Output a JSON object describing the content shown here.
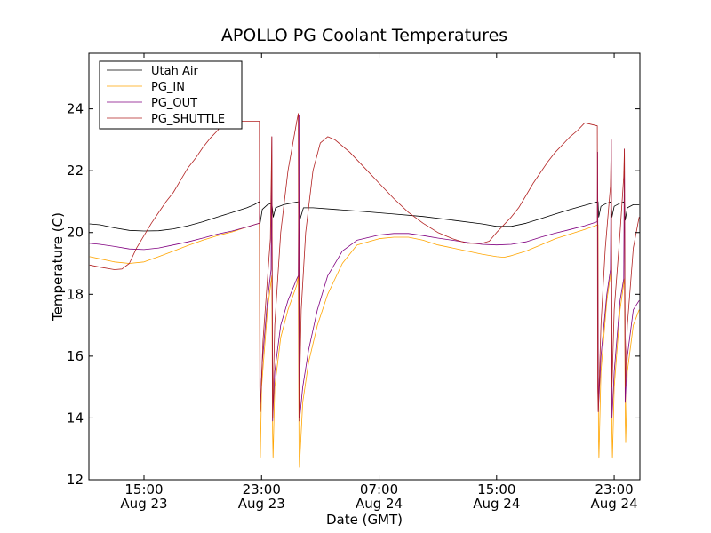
{
  "chart_data": {
    "type": "line",
    "title": "APOLLO PG Coolant Temperatures",
    "xlabel": "Date (GMT)",
    "ylabel": "Temperature (C)",
    "x_units": "hours since Aug 23 00:00 GMT",
    "xlim": [
      11.25,
      48.75
    ],
    "ylim": [
      12,
      25.8
    ],
    "yticks": [
      12,
      14,
      16,
      18,
      20,
      22,
      24
    ],
    "xticks": [
      {
        "x": 15,
        "time": "15:00",
        "date": "Aug 23"
      },
      {
        "x": 23,
        "time": "23:00",
        "date": "Aug 23"
      },
      {
        "x": 31,
        "time": "07:00",
        "date": "Aug 24"
      },
      {
        "x": 39,
        "time": "15:00",
        "date": "Aug 24"
      },
      {
        "x": 47,
        "time": "23:00",
        "date": "Aug 24"
      }
    ],
    "grid": false,
    "legend_position": "top-left",
    "series": [
      {
        "name": "Utah Air",
        "color": "#000000",
        "points": [
          [
            11.3,
            20.28
          ],
          [
            12.0,
            20.25
          ],
          [
            13.0,
            20.15
          ],
          [
            14.0,
            20.07
          ],
          [
            15.0,
            20.05
          ],
          [
            16.0,
            20.06
          ],
          [
            17.0,
            20.12
          ],
          [
            18.0,
            20.22
          ],
          [
            19.0,
            20.35
          ],
          [
            20.0,
            20.5
          ],
          [
            21.0,
            20.65
          ],
          [
            22.0,
            20.8
          ],
          [
            22.5,
            20.9
          ],
          [
            22.85,
            21.0
          ],
          [
            22.9,
            20.3
          ],
          [
            23.05,
            20.75
          ],
          [
            23.4,
            20.9
          ],
          [
            23.7,
            20.95
          ],
          [
            23.8,
            20.5
          ],
          [
            23.95,
            20.8
          ],
          [
            24.5,
            20.9
          ],
          [
            25.0,
            20.95
          ],
          [
            25.55,
            21.0
          ],
          [
            25.6,
            20.4
          ],
          [
            25.85,
            20.8
          ],
          [
            26.5,
            20.8
          ],
          [
            28.0,
            20.75
          ],
          [
            30.0,
            20.68
          ],
          [
            32.0,
            20.6
          ],
          [
            34.0,
            20.52
          ],
          [
            36.0,
            20.4
          ],
          [
            38.0,
            20.28
          ],
          [
            39.0,
            20.2
          ],
          [
            40.0,
            20.2
          ],
          [
            41.0,
            20.3
          ],
          [
            42.0,
            20.45
          ],
          [
            43.0,
            20.6
          ],
          [
            44.0,
            20.75
          ],
          [
            45.0,
            20.88
          ],
          [
            45.9,
            21.0
          ],
          [
            45.95,
            20.5
          ],
          [
            46.1,
            20.85
          ],
          [
            46.5,
            20.95
          ],
          [
            46.8,
            21.0
          ],
          [
            46.85,
            20.5
          ],
          [
            47.0,
            20.85
          ],
          [
            47.4,
            20.95
          ],
          [
            47.7,
            21.0
          ],
          [
            47.75,
            20.4
          ],
          [
            47.9,
            20.8
          ],
          [
            48.3,
            20.9
          ],
          [
            48.7,
            20.9
          ]
        ]
      },
      {
        "name": "PG_IN",
        "color": "#ffa500",
        "points": [
          [
            11.3,
            19.22
          ],
          [
            12.0,
            19.15
          ],
          [
            13.0,
            19.05
          ],
          [
            14.0,
            19.0
          ],
          [
            15.0,
            19.05
          ],
          [
            16.0,
            19.22
          ],
          [
            17.0,
            19.4
          ],
          [
            18.0,
            19.58
          ],
          [
            19.0,
            19.75
          ],
          [
            20.0,
            19.9
          ],
          [
            21.0,
            20.02
          ],
          [
            22.0,
            20.18
          ],
          [
            22.85,
            20.3
          ],
          [
            22.9,
            14.0
          ],
          [
            22.92,
            12.7
          ],
          [
            23.0,
            15.0
          ],
          [
            23.4,
            17.5
          ],
          [
            23.7,
            18.6
          ],
          [
            23.75,
            13.5
          ],
          [
            23.78,
            12.7
          ],
          [
            23.9,
            15.0
          ],
          [
            24.3,
            16.6
          ],
          [
            24.8,
            17.5
          ],
          [
            25.4,
            18.3
          ],
          [
            25.5,
            18.6
          ],
          [
            25.55,
            13.0
          ],
          [
            25.58,
            12.4
          ],
          [
            25.8,
            14.5
          ],
          [
            26.2,
            15.8
          ],
          [
            26.8,
            17.0
          ],
          [
            27.5,
            18.0
          ],
          [
            28.5,
            19.0
          ],
          [
            29.5,
            19.6
          ],
          [
            31.0,
            19.8
          ],
          [
            32.0,
            19.85
          ],
          [
            33.0,
            19.85
          ],
          [
            34.0,
            19.75
          ],
          [
            35.0,
            19.6
          ],
          [
            36.0,
            19.5
          ],
          [
            37.0,
            19.4
          ],
          [
            38.0,
            19.3
          ],
          [
            39.0,
            19.22
          ],
          [
            39.5,
            19.2
          ],
          [
            40.0,
            19.25
          ],
          [
            41.0,
            19.4
          ],
          [
            42.0,
            19.6
          ],
          [
            43.0,
            19.8
          ],
          [
            44.0,
            19.95
          ],
          [
            45.0,
            20.1
          ],
          [
            45.9,
            20.25
          ],
          [
            45.93,
            13.5
          ],
          [
            45.96,
            12.7
          ],
          [
            46.1,
            15.5
          ],
          [
            46.5,
            17.8
          ],
          [
            46.8,
            18.8
          ],
          [
            46.85,
            13.5
          ],
          [
            46.88,
            12.7
          ],
          [
            47.0,
            15.0
          ],
          [
            47.4,
            17.5
          ],
          [
            47.7,
            18.5
          ],
          [
            47.75,
            14.0
          ],
          [
            47.78,
            13.2
          ],
          [
            47.9,
            15.5
          ],
          [
            48.3,
            17.0
          ],
          [
            48.7,
            17.5
          ]
        ]
      },
      {
        "name": "PG_OUT",
        "color": "#800080",
        "points": [
          [
            11.3,
            19.65
          ],
          [
            12.0,
            19.62
          ],
          [
            13.0,
            19.55
          ],
          [
            14.0,
            19.47
          ],
          [
            15.0,
            19.45
          ],
          [
            16.0,
            19.5
          ],
          [
            17.0,
            19.6
          ],
          [
            18.0,
            19.7
          ],
          [
            19.0,
            19.82
          ],
          [
            20.0,
            19.95
          ],
          [
            21.0,
            20.05
          ],
          [
            22.0,
            20.18
          ],
          [
            22.85,
            20.3
          ],
          [
            22.88,
            22.6
          ],
          [
            22.91,
            14.2
          ],
          [
            23.05,
            15.8
          ],
          [
            23.4,
            17.8
          ],
          [
            23.65,
            18.8
          ],
          [
            23.7,
            23.1
          ],
          [
            23.75,
            13.9
          ],
          [
            23.9,
            15.5
          ],
          [
            24.3,
            17.0
          ],
          [
            24.8,
            17.8
          ],
          [
            25.4,
            18.5
          ],
          [
            25.5,
            18.6
          ],
          [
            25.55,
            23.8
          ],
          [
            25.58,
            13.9
          ],
          [
            25.8,
            15.0
          ],
          [
            26.2,
            16.2
          ],
          [
            26.8,
            17.5
          ],
          [
            27.5,
            18.6
          ],
          [
            28.5,
            19.4
          ],
          [
            29.5,
            19.75
          ],
          [
            31.0,
            19.92
          ],
          [
            32.0,
            19.97
          ],
          [
            33.0,
            19.97
          ],
          [
            34.0,
            19.9
          ],
          [
            35.0,
            19.82
          ],
          [
            36.0,
            19.75
          ],
          [
            37.0,
            19.68
          ],
          [
            38.0,
            19.62
          ],
          [
            39.0,
            19.6
          ],
          [
            40.0,
            19.62
          ],
          [
            41.0,
            19.7
          ],
          [
            42.0,
            19.85
          ],
          [
            43.0,
            19.98
          ],
          [
            44.0,
            20.1
          ],
          [
            45.0,
            20.22
          ],
          [
            45.85,
            20.35
          ],
          [
            45.88,
            22.6
          ],
          [
            45.92,
            14.2
          ],
          [
            46.1,
            16.0
          ],
          [
            46.5,
            18.0
          ],
          [
            46.75,
            18.8
          ],
          [
            46.8,
            23.0
          ],
          [
            46.85,
            14.0
          ],
          [
            47.0,
            15.5
          ],
          [
            47.4,
            17.8
          ],
          [
            47.65,
            18.5
          ],
          [
            47.7,
            22.7
          ],
          [
            47.75,
            14.5
          ],
          [
            47.9,
            16.0
          ],
          [
            48.3,
            17.5
          ],
          [
            48.7,
            17.8
          ]
        ]
      },
      {
        "name": "PG_SHUTTLE",
        "color": "#b22222",
        "points": [
          [
            11.3,
            18.95
          ],
          [
            12.0,
            18.88
          ],
          [
            13.0,
            18.8
          ],
          [
            13.5,
            18.82
          ],
          [
            14.0,
            19.0
          ],
          [
            14.5,
            19.5
          ],
          [
            15.0,
            19.9
          ],
          [
            15.5,
            20.3
          ],
          [
            16.0,
            20.65
          ],
          [
            16.5,
            21.0
          ],
          [
            17.0,
            21.3
          ],
          [
            17.5,
            21.7
          ],
          [
            18.0,
            22.1
          ],
          [
            18.5,
            22.4
          ],
          [
            19.0,
            22.75
          ],
          [
            19.5,
            23.05
          ],
          [
            20.0,
            23.3
          ],
          [
            20.5,
            23.6
          ],
          [
            22.85,
            23.6
          ],
          [
            22.88,
            15.0
          ],
          [
            22.91,
            14.2
          ],
          [
            23.1,
            16.5
          ],
          [
            23.4,
            18.5
          ],
          [
            23.6,
            19.8
          ],
          [
            23.7,
            23.1
          ],
          [
            23.75,
            14.0
          ],
          [
            23.9,
            17.0
          ],
          [
            24.3,
            20.0
          ],
          [
            24.8,
            22.0
          ],
          [
            25.4,
            23.6
          ],
          [
            25.5,
            23.85
          ],
          [
            25.55,
            14.0
          ],
          [
            25.7,
            17.5
          ],
          [
            26.0,
            20.0
          ],
          [
            26.5,
            22.0
          ],
          [
            27.0,
            22.9
          ],
          [
            27.5,
            23.1
          ],
          [
            28.0,
            23.0
          ],
          [
            29.0,
            22.6
          ],
          [
            30.0,
            22.1
          ],
          [
            31.0,
            21.6
          ],
          [
            32.0,
            21.1
          ],
          [
            33.0,
            20.65
          ],
          [
            34.0,
            20.3
          ],
          [
            35.0,
            20.0
          ],
          [
            36.0,
            19.8
          ],
          [
            37.0,
            19.65
          ],
          [
            38.0,
            19.65
          ],
          [
            38.5,
            19.72
          ],
          [
            39.0,
            20.0
          ],
          [
            40.0,
            20.5
          ],
          [
            40.5,
            20.8
          ],
          [
            41.0,
            21.2
          ],
          [
            41.5,
            21.6
          ],
          [
            42.0,
            21.95
          ],
          [
            42.5,
            22.3
          ],
          [
            43.0,
            22.6
          ],
          [
            43.5,
            22.85
          ],
          [
            44.0,
            23.1
          ],
          [
            44.5,
            23.3
          ],
          [
            45.0,
            23.55
          ],
          [
            45.85,
            23.45
          ],
          [
            45.88,
            15.0
          ],
          [
            45.92,
            14.2
          ],
          [
            46.1,
            17.0
          ],
          [
            46.4,
            19.5
          ],
          [
            46.75,
            21.5
          ],
          [
            46.8,
            23.0
          ],
          [
            46.85,
            15.0
          ],
          [
            47.0,
            17.5
          ],
          [
            47.4,
            20.0
          ],
          [
            47.65,
            21.8
          ],
          [
            47.7,
            22.7
          ],
          [
            47.75,
            15.0
          ],
          [
            47.9,
            17.0
          ],
          [
            48.3,
            19.5
          ],
          [
            48.7,
            20.5
          ]
        ]
      }
    ]
  }
}
